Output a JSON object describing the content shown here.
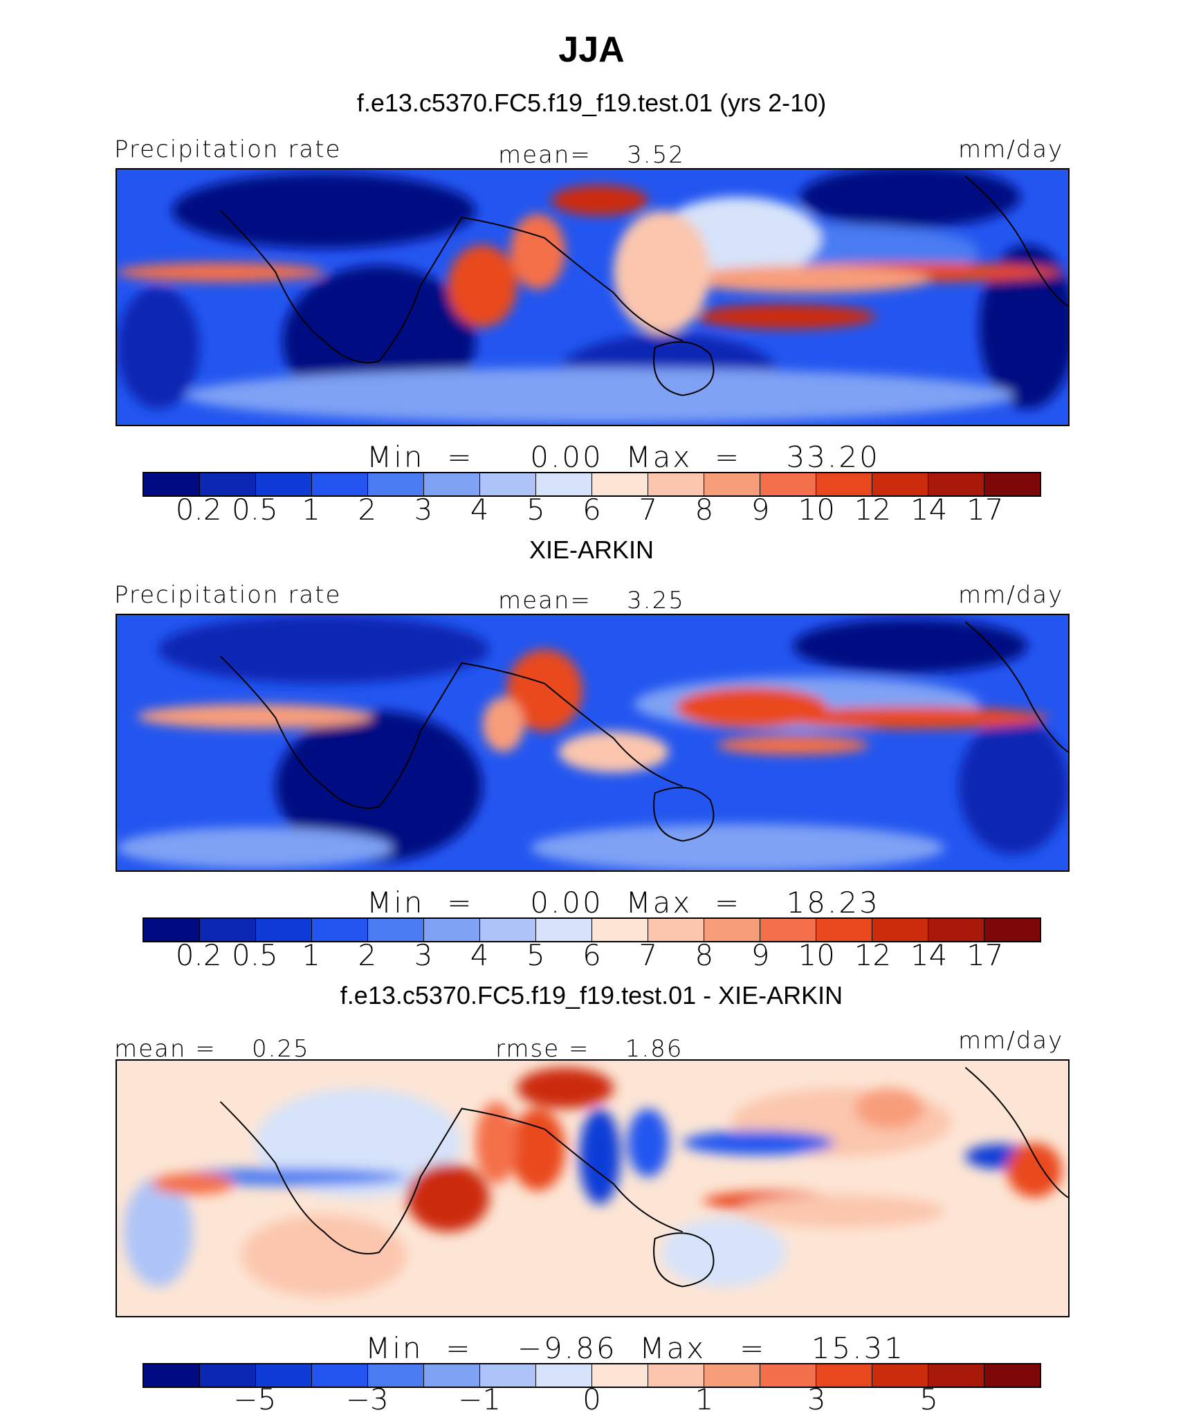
{
  "title": "JJA",
  "chart_data": [
    {
      "type": "heatmap",
      "panel_title": "f.e13.c5370.FC5.f19_f19.test.01 (yrs 2-10)",
      "left_label": "Precipitation rate",
      "center_label": "mean=",
      "center_value": "3.52",
      "units": "mm/day",
      "min_label": "Min",
      "min_value": "0.00",
      "max_label": "Max",
      "max_value": "33.20",
      "colorbar_ticks": [
        "0.2",
        "0.5",
        "1",
        "2",
        "3",
        "4",
        "5",
        "6",
        "7",
        "8",
        "9",
        "10",
        "12",
        "14",
        "17"
      ]
    },
    {
      "type": "heatmap",
      "panel_title": "XIE-ARKIN",
      "left_label": "Precipitation rate",
      "center_label": "mean=",
      "center_value": "3.25",
      "units": "mm/day",
      "min_label": "Min",
      "min_value": "0.00",
      "max_label": "Max",
      "max_value": "18.23",
      "colorbar_ticks": [
        "0.2",
        "0.5",
        "1",
        "2",
        "3",
        "4",
        "5",
        "6",
        "7",
        "8",
        "9",
        "10",
        "12",
        "14",
        "17"
      ]
    },
    {
      "type": "heatmap",
      "panel_title": "f.e13.c5370.FC5.f19_f19.test.01 - XIE-ARKIN",
      "left_label": "mean =",
      "left_value": "0.25",
      "center_label": "rmse =",
      "center_value": "1.86",
      "units": "mm/day",
      "min_label": "Min",
      "min_value": "−9.86",
      "max_label": "Max",
      "max_value": "15.31",
      "colorbar_ticks": [
        "−5",
        "−3",
        "−1",
        "0",
        "1",
        "3",
        "5"
      ]
    }
  ],
  "colors": {
    "scale": [
      "#000a82",
      "#0a28b4",
      "#0f3cd7",
      "#2356f0",
      "#4a7bf2",
      "#7fa2f5",
      "#aec4f8",
      "#d6e3fa",
      "#fde5d5",
      "#fbc6ad",
      "#f89d7a",
      "#f4704a",
      "#e9481e",
      "#cc2c0b",
      "#a8190a",
      "#7e0808"
    ]
  }
}
